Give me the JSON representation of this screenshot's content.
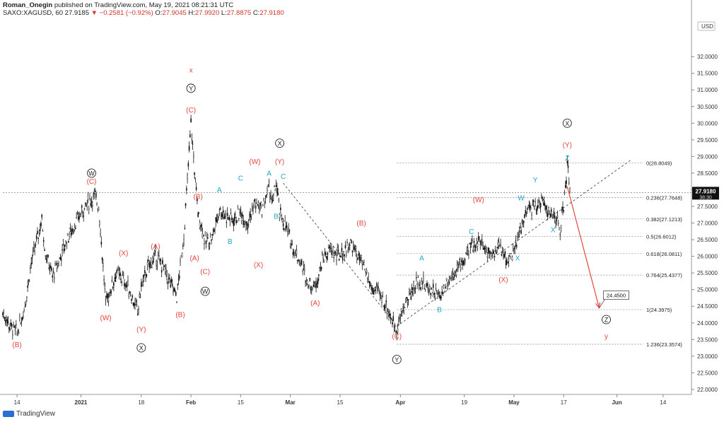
{
  "header": {
    "author": "Roman_Onegin",
    "published": "published on TradingView.com, May 19, 2021 08:21:31 UTC",
    "symbol": "SAXO:XAGUSD, 60",
    "last": "27.9185",
    "change": "▼ −0.2581 (−0.92%)",
    "o_label": "O:",
    "o": "27.9045",
    "h_label": "H:",
    "h": "27.9920",
    "l_label": "L:",
    "l": "27.8875",
    "c_label": "C:",
    "c": "27.9180"
  },
  "watermark": "TradingView",
  "currency": "USD",
  "colors": {
    "wave_red": "#e5473d",
    "wave_cyan": "#20a6c9",
    "arrow": "#e5473d",
    "candles": "#111111"
  },
  "chart_data": {
    "type": "line",
    "x_ticks": [
      {
        "x": "2020-12-14",
        "label": "14"
      },
      {
        "x": "2021-01-01",
        "label": "2021"
      },
      {
        "x": "2021-01-18",
        "label": "18"
      },
      {
        "x": "2021-02-01",
        "label": "Feb"
      },
      {
        "x": "2021-02-15",
        "label": "15"
      },
      {
        "x": "2021-03-01",
        "label": "Mar"
      },
      {
        "x": "2021-03-15",
        "label": "15"
      },
      {
        "x": "2021-04-01",
        "label": "Apr"
      },
      {
        "x": "2021-04-19",
        "label": "19"
      },
      {
        "x": "2021-05-03",
        "label": "May"
      },
      {
        "x": "2021-05-17",
        "label": "17"
      },
      {
        "x": "2021-06-01",
        "label": "Jun"
      },
      {
        "x": "2021-06-14",
        "label": "14"
      }
    ],
    "y_ticks": [
      "22.0000",
      "22.5000",
      "23.0000",
      "23.5000",
      "24.0000",
      "24.5000",
      "25.0000",
      "25.5000",
      "26.0000",
      "26.5000",
      "27.0000",
      "27.5000",
      "28.0000",
      "28.5000",
      "29.0000",
      "29.5000",
      "30.0000",
      "30.5000",
      "31.0000",
      "31.5000",
      "32.0000"
    ],
    "ylim": [
      21.85,
      33.15
    ],
    "xlim": [
      "2020-12-10",
      "2021-06-22"
    ],
    "price_path": [
      [
        "2020-12-10",
        24.3
      ],
      [
        "2020-12-12",
        23.9
      ],
      [
        "2020-12-14",
        23.7
      ],
      [
        "2020-12-16",
        24.4
      ],
      [
        "2020-12-18",
        25.8
      ],
      [
        "2020-12-21",
        27.1
      ],
      [
        "2020-12-22",
        26.1
      ],
      [
        "2020-12-24",
        25.4
      ],
      [
        "2020-12-26",
        25.9
      ],
      [
        "2020-12-28",
        26.5
      ],
      [
        "2020-12-30",
        26.9
      ],
      [
        "2021-01-01",
        27.3
      ],
      [
        "2021-01-03",
        27.6
      ],
      [
        "2021-01-05",
        27.8
      ],
      [
        "2021-01-06",
        27.5
      ],
      [
        "2021-01-08",
        24.6
      ],
      [
        "2021-01-09",
        24.9
      ],
      [
        "2021-01-11",
        25.5
      ],
      [
        "2021-01-13",
        25.3
      ],
      [
        "2021-01-15",
        24.9
      ],
      [
        "2021-01-17",
        24.3
      ],
      [
        "2021-01-18",
        25.1
      ],
      [
        "2021-01-20",
        25.7
      ],
      [
        "2021-01-22",
        26.0
      ],
      [
        "2021-01-24",
        25.7
      ],
      [
        "2021-01-26",
        25.2
      ],
      [
        "2021-01-28",
        24.8
      ],
      [
        "2021-01-30",
        26.6
      ],
      [
        "2021-02-01",
        30.0
      ],
      [
        "2021-02-02",
        28.6
      ],
      [
        "2021-02-03",
        27.3
      ],
      [
        "2021-02-04",
        26.9
      ],
      [
        "2021-02-05",
        26.4
      ],
      [
        "2021-02-07",
        26.6
      ],
      [
        "2021-02-09",
        27.4
      ],
      [
        "2021-02-11",
        27.2
      ],
      [
        "2021-02-13",
        27.1
      ],
      [
        "2021-02-15",
        27.3
      ],
      [
        "2021-02-17",
        27.0
      ],
      [
        "2021-02-19",
        27.6
      ],
      [
        "2021-02-21",
        27.4
      ],
      [
        "2021-02-23",
        28.1
      ],
      [
        "2021-02-24",
        27.6
      ],
      [
        "2021-02-25",
        28.2
      ],
      [
        "2021-02-26",
        27.3
      ],
      [
        "2021-02-28",
        26.8
      ],
      [
        "2021-03-02",
        26.2
      ],
      [
        "2021-03-04",
        25.8
      ],
      [
        "2021-03-06",
        25.2
      ],
      [
        "2021-03-08",
        25.1
      ],
      [
        "2021-03-10",
        25.9
      ],
      [
        "2021-03-12",
        26.2
      ],
      [
        "2021-03-14",
        26.0
      ],
      [
        "2021-03-16",
        26.1
      ],
      [
        "2021-03-18",
        26.4
      ],
      [
        "2021-03-20",
        26.0
      ],
      [
        "2021-03-22",
        25.6
      ],
      [
        "2021-03-24",
        25.0
      ],
      [
        "2021-03-26",
        24.9
      ],
      [
        "2021-03-28",
        24.5
      ],
      [
        "2021-03-30",
        24.0
      ],
      [
        "2021-03-31",
        23.8
      ],
      [
        "2021-04-02",
        24.5
      ],
      [
        "2021-04-04",
        24.9
      ],
      [
        "2021-04-06",
        25.3
      ],
      [
        "2021-04-08",
        25.1
      ],
      [
        "2021-04-10",
        25.0
      ],
      [
        "2021-04-12",
        24.8
      ],
      [
        "2021-04-14",
        25.2
      ],
      [
        "2021-04-16",
        25.5
      ],
      [
        "2021-04-19",
        25.9
      ],
      [
        "2021-04-21",
        26.3
      ],
      [
        "2021-04-23",
        26.5
      ],
      [
        "2021-04-25",
        26.2
      ],
      [
        "2021-04-27",
        26.1
      ],
      [
        "2021-04-29",
        26.3
      ],
      [
        "2021-05-01",
        25.9
      ],
      [
        "2021-05-03",
        26.1
      ],
      [
        "2021-05-05",
        26.9
      ],
      [
        "2021-05-07",
        27.4
      ],
      [
        "2021-05-09",
        27.5
      ],
      [
        "2021-05-11",
        27.7
      ],
      [
        "2021-05-13",
        27.3
      ],
      [
        "2021-05-15",
        27.1
      ],
      [
        "2021-05-16",
        26.8
      ],
      [
        "2021-05-17",
        27.5
      ],
      [
        "2021-05-18",
        28.7
      ],
      [
        "2021-05-19",
        27.9
      ]
    ],
    "last_price": 27.918,
    "last_price_label": "27.9180",
    "timer_label": "38:30",
    "fib_levels": [
      {
        "label": "0(28.8049)",
        "value": 28.8049
      },
      {
        "label": "0.236(27.7648)",
        "value": 27.7648
      },
      {
        "label": "0.382(27.1213)",
        "value": 27.1213
      },
      {
        "label": "0.5(26.6012)",
        "value": 26.6012
      },
      {
        "label": "0.618(26.0811)",
        "value": 26.0811
      },
      {
        "label": "0.764(25.4377)",
        "value": 25.4377
      },
      {
        "label": "1(24.3975)",
        "value": 24.3975
      },
      {
        "label": "1.236(23.3574)",
        "value": 23.3574
      }
    ],
    "fib_start": "2021-03-31",
    "projection": {
      "from": [
        "2021-05-18",
        28.1
      ],
      "to": [
        "2021-05-27",
        24.45
      ],
      "label": "24.4500"
    },
    "trendlines": [
      {
        "from": [
          "2021-02-27",
          28.2
        ],
        "to": [
          "2021-03-31",
          23.9
        ]
      },
      {
        "from": [
          "2021-03-31",
          23.9
        ],
        "to": [
          "2021-06-05",
          28.9
        ]
      }
    ],
    "labels": [
      {
        "t": "(B)",
        "d": "2020-12-14",
        "v": 23.35,
        "c": "red"
      },
      {
        "t": "W",
        "d": "2021-01-04",
        "v": 28.5,
        "c": "circle"
      },
      {
        "t": "(C)",
        "d": "2021-01-04",
        "v": 28.25,
        "c": "red"
      },
      {
        "t": "(W)",
        "d": "2021-01-08",
        "v": 24.15,
        "c": "red"
      },
      {
        "t": "(X)",
        "d": "2021-01-13",
        "v": 26.1,
        "c": "red"
      },
      {
        "t": "(Y)",
        "d": "2021-01-18",
        "v": 23.8,
        "c": "red"
      },
      {
        "t": "X",
        "d": "2021-01-18",
        "v": 23.25,
        "c": "circle"
      },
      {
        "t": "(A)",
        "d": "2021-01-22",
        "v": 26.3,
        "c": "red"
      },
      {
        "t": "(B)",
        "d": "2021-01-29",
        "v": 24.25,
        "c": "red"
      },
      {
        "t": "x",
        "d": "2021-02-01",
        "v": 31.6,
        "c": "red"
      },
      {
        "t": "Y",
        "d": "2021-02-01",
        "v": 31.05,
        "c": "circle"
      },
      {
        "t": "(C)",
        "d": "2021-02-01",
        "v": 30.4,
        "c": "red"
      },
      {
        "t": "(B)",
        "d": "2021-02-03",
        "v": 27.8,
        "c": "red"
      },
      {
        "t": "(A)",
        "d": "2021-02-02",
        "v": 25.95,
        "c": "red"
      },
      {
        "t": "(C)",
        "d": "2021-02-05",
        "v": 25.55,
        "c": "red"
      },
      {
        "t": "W",
        "d": "2021-02-05",
        "v": 24.95,
        "c": "circle"
      },
      {
        "t": "A",
        "d": "2021-02-09",
        "v": 28.0,
        "c": "cyan"
      },
      {
        "t": "B",
        "d": "2021-02-12",
        "v": 26.45,
        "c": "cyan"
      },
      {
        "t": "C",
        "d": "2021-02-15",
        "v": 28.35,
        "c": "cyan"
      },
      {
        "t": "(W)",
        "d": "2021-02-19",
        "v": 28.85,
        "c": "red"
      },
      {
        "t": "(X)",
        "d": "2021-02-20",
        "v": 25.75,
        "c": "red"
      },
      {
        "t": "A",
        "d": "2021-02-23",
        "v": 28.5,
        "c": "cyan"
      },
      {
        "t": "B",
        "d": "2021-02-25",
        "v": 27.2,
        "c": "cyan"
      },
      {
        "t": "X",
        "d": "2021-02-26",
        "v": 29.4,
        "c": "circle"
      },
      {
        "t": "(Y)",
        "d": "2021-02-26",
        "v": 28.85,
        "c": "red"
      },
      {
        "t": "C",
        "d": "2021-02-27",
        "v": 28.4,
        "c": "cyan"
      },
      {
        "t": "(A)",
        "d": "2021-03-08",
        "v": 24.6,
        "c": "red"
      },
      {
        "t": "(B)",
        "d": "2021-03-21",
        "v": 27.0,
        "c": "red"
      },
      {
        "t": "(C)",
        "d": "2021-03-31",
        "v": 23.6,
        "c": "red"
      },
      {
        "t": "Y",
        "d": "2021-03-31",
        "v": 22.9,
        "c": "circle"
      },
      {
        "t": "A",
        "d": "2021-04-07",
        "v": 25.95,
        "c": "cyan"
      },
      {
        "t": "B",
        "d": "2021-04-12",
        "v": 24.4,
        "c": "cyan"
      },
      {
        "t": "C",
        "d": "2021-04-21",
        "v": 26.75,
        "c": "cyan"
      },
      {
        "t": "(W)",
        "d": "2021-04-23",
        "v": 27.7,
        "c": "red"
      },
      {
        "t": "(X)",
        "d": "2021-04-30",
        "v": 25.3,
        "c": "red"
      },
      {
        "t": "X",
        "d": "2021-05-04",
        "v": 25.95,
        "c": "cyan"
      },
      {
        "t": "W",
        "d": "2021-05-05",
        "v": 27.75,
        "c": "cyan"
      },
      {
        "t": "Y",
        "d": "2021-05-09",
        "v": 28.3,
        "c": "cyan"
      },
      {
        "t": "X",
        "d": "2021-05-14",
        "v": 26.8,
        "c": "cyan"
      },
      {
        "t": "X",
        "d": "2021-05-18",
        "v": 30.0,
        "c": "circle"
      },
      {
        "t": "(Y)",
        "d": "2021-05-18",
        "v": 29.35,
        "c": "red"
      },
      {
        "t": "Z",
        "d": "2021-05-18",
        "v": 28.95,
        "c": "cyan"
      },
      {
        "t": "Z",
        "d": "2021-05-29",
        "v": 24.1,
        "c": "circle"
      },
      {
        "t": "y",
        "d": "2021-05-29",
        "v": 23.6,
        "c": "red"
      }
    ]
  }
}
